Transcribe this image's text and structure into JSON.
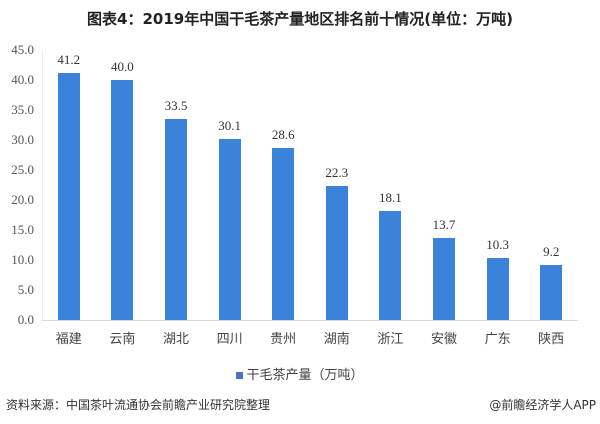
{
  "title": "图表4：2019年中国干毛茶产量地区排名前十情况(单位：万吨)",
  "chart_data": {
    "type": "bar",
    "title": "图表4：2019年中国干毛茶产量地区排名前十情况(单位：万吨)",
    "categories": [
      "福建",
      "云南",
      "湖北",
      "四川",
      "贵州",
      "湖南",
      "浙江",
      "安徽",
      "广东",
      "陕西"
    ],
    "series": [
      {
        "name": "干毛茶产量（万吨）",
        "values": [
          41.2,
          40.0,
          33.5,
          30.1,
          28.6,
          22.3,
          18.1,
          13.7,
          10.3,
          9.2
        ],
        "color": "#3b82db"
      }
    ],
    "value_labels": [
      "41.2",
      "40.0",
      "33.5",
      "30.1",
      "28.6",
      "22.3",
      "18.1",
      "13.7",
      "10.3",
      "9.2"
    ],
    "xlabel": "",
    "ylabel": "",
    "ylim": [
      0,
      45
    ],
    "yticks": [
      "0.0",
      "5.0",
      "10.0",
      "15.0",
      "20.0",
      "25.0",
      "30.0",
      "35.0",
      "40.0",
      "45.0"
    ],
    "grid": false,
    "legend_position": "bottom"
  },
  "legend": {
    "label": "干毛茶产量（万吨）"
  },
  "footer": {
    "source": "资料来源：中国茶叶流通协会前瞻产业研究院整理",
    "credit": "@前瞻经济学人APP"
  }
}
